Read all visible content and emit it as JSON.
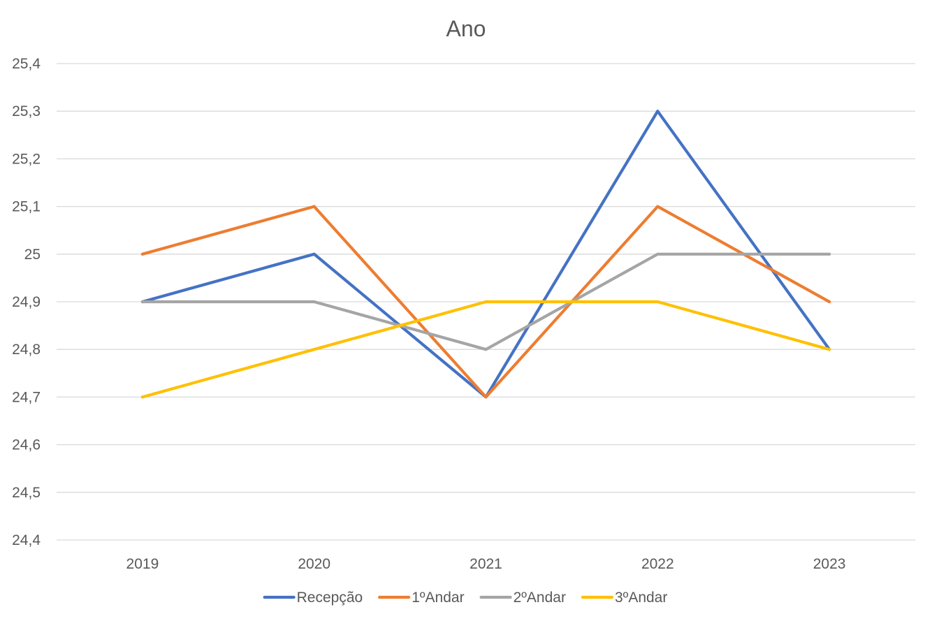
{
  "chart_data": {
    "type": "line",
    "title": "Ano",
    "xlabel": "",
    "ylabel": "",
    "categories": [
      "2019",
      "2020",
      "2021",
      "2022",
      "2023"
    ],
    "ylim": [
      24.4,
      25.4
    ],
    "yticks": [
      "24,4",
      "24,5",
      "24,6",
      "24,7",
      "24,8",
      "24,9",
      "25",
      "25,1",
      "25,2",
      "25,3",
      "25,4"
    ],
    "ytick_values": [
      24.4,
      24.5,
      24.6,
      24.7,
      24.8,
      24.9,
      25.0,
      25.1,
      25.2,
      25.3,
      25.4
    ],
    "grid": true,
    "legend_position": "bottom",
    "series": [
      {
        "name": "Recepção",
        "color": "#4472c4",
        "values": [
          24.9,
          25.0,
          24.7,
          25.3,
          24.8
        ]
      },
      {
        "name": "1ºAndar",
        "color": "#ed7d31",
        "values": [
          25.0,
          25.1,
          24.7,
          25.1,
          24.9
        ]
      },
      {
        "name": "2ºAndar",
        "color": "#a5a5a5",
        "values": [
          24.9,
          24.9,
          24.8,
          25.0,
          25.0
        ]
      },
      {
        "name": "3ºAndar",
        "color": "#ffc000",
        "values": [
          24.7,
          24.8,
          24.9,
          24.9,
          24.8
        ]
      }
    ]
  }
}
